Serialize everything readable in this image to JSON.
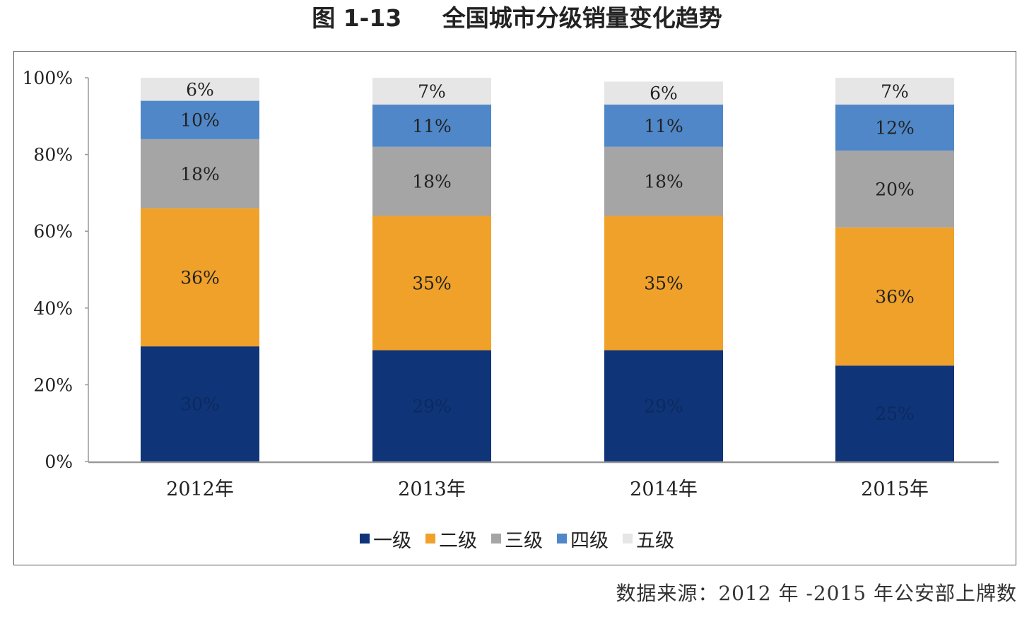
{
  "figure": {
    "number": "图 1-13",
    "title": "全国城市分级销量变化趋势"
  },
  "source_note": "数据来源：2012 年 -2015 年公安部上牌数",
  "chart_data": {
    "type": "bar",
    "stacked": true,
    "title": "全国城市分级销量变化趋势",
    "categories": [
      "2012年",
      "2013年",
      "2014年",
      "2015年"
    ],
    "y_ticks": [
      "0%",
      "20%",
      "40%",
      "60%",
      "80%",
      "100%"
    ],
    "ylim": [
      0,
      100
    ],
    "series": [
      {
        "name": "一级",
        "color": "#0f3478",
        "values": [
          30,
          29,
          29,
          25
        ],
        "labels": [
          "30%",
          "29%",
          "29%",
          "25%"
        ]
      },
      {
        "name": "二级",
        "color": "#f0a12a",
        "values": [
          36,
          35,
          35,
          36
        ],
        "labels": [
          "36%",
          "35%",
          "35%",
          "36%"
        ]
      },
      {
        "name": "三级",
        "color": "#a5a5a5",
        "values": [
          18,
          18,
          18,
          20
        ],
        "labels": [
          "18%",
          "18%",
          "18%",
          "20%"
        ]
      },
      {
        "name": "四级",
        "color": "#4f87c8",
        "values": [
          10,
          11,
          11,
          12
        ],
        "labels": [
          "10%",
          "11%",
          "11%",
          "12%"
        ]
      },
      {
        "name": "五级",
        "color": "#e6e6e6",
        "values": [
          6,
          7,
          6,
          7
        ],
        "labels": [
          "6%",
          "7%",
          "6%",
          "7%"
        ]
      }
    ],
    "legend_position": "bottom",
    "grid": false
  }
}
